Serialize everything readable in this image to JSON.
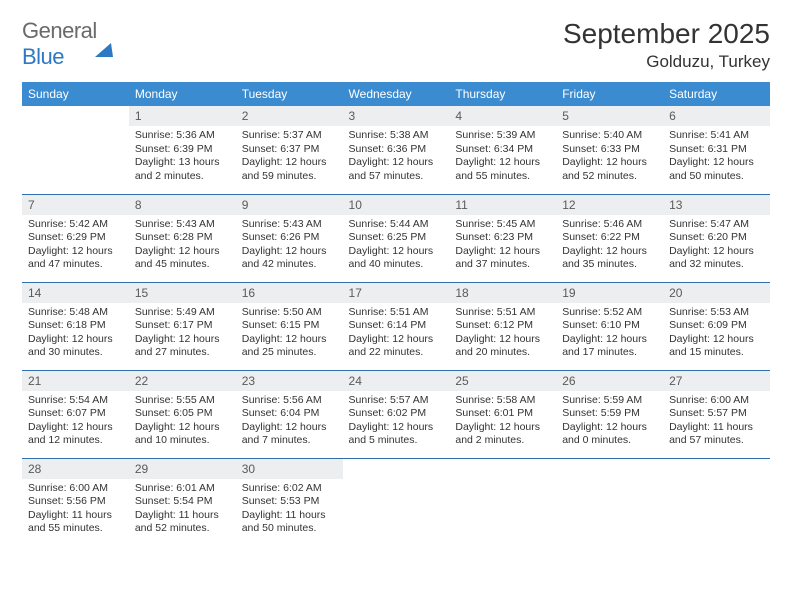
{
  "brand": {
    "word1": "General",
    "word2": "Blue"
  },
  "title": "September 2025",
  "location": "Golduzu, Turkey",
  "colors": {
    "header_bg": "#3b8bd0",
    "header_text": "#ffffff",
    "daynum_bg": "#eceeef",
    "row_border": "#2f6faa",
    "logo_gray": "#6a6a6a",
    "logo_blue": "#2f78c4",
    "text": "#333333"
  },
  "dow": [
    "Sunday",
    "Monday",
    "Tuesday",
    "Wednesday",
    "Thursday",
    "Friday",
    "Saturday"
  ],
  "weeks": [
    [
      {
        "n": "",
        "sr": "",
        "ss": "",
        "dl": ""
      },
      {
        "n": "1",
        "sr": "Sunrise: 5:36 AM",
        "ss": "Sunset: 6:39 PM",
        "dl": "Daylight: 13 hours and 2 minutes."
      },
      {
        "n": "2",
        "sr": "Sunrise: 5:37 AM",
        "ss": "Sunset: 6:37 PM",
        "dl": "Daylight: 12 hours and 59 minutes."
      },
      {
        "n": "3",
        "sr": "Sunrise: 5:38 AM",
        "ss": "Sunset: 6:36 PM",
        "dl": "Daylight: 12 hours and 57 minutes."
      },
      {
        "n": "4",
        "sr": "Sunrise: 5:39 AM",
        "ss": "Sunset: 6:34 PM",
        "dl": "Daylight: 12 hours and 55 minutes."
      },
      {
        "n": "5",
        "sr": "Sunrise: 5:40 AM",
        "ss": "Sunset: 6:33 PM",
        "dl": "Daylight: 12 hours and 52 minutes."
      },
      {
        "n": "6",
        "sr": "Sunrise: 5:41 AM",
        "ss": "Sunset: 6:31 PM",
        "dl": "Daylight: 12 hours and 50 minutes."
      }
    ],
    [
      {
        "n": "7",
        "sr": "Sunrise: 5:42 AM",
        "ss": "Sunset: 6:29 PM",
        "dl": "Daylight: 12 hours and 47 minutes."
      },
      {
        "n": "8",
        "sr": "Sunrise: 5:43 AM",
        "ss": "Sunset: 6:28 PM",
        "dl": "Daylight: 12 hours and 45 minutes."
      },
      {
        "n": "9",
        "sr": "Sunrise: 5:43 AM",
        "ss": "Sunset: 6:26 PM",
        "dl": "Daylight: 12 hours and 42 minutes."
      },
      {
        "n": "10",
        "sr": "Sunrise: 5:44 AM",
        "ss": "Sunset: 6:25 PM",
        "dl": "Daylight: 12 hours and 40 minutes."
      },
      {
        "n": "11",
        "sr": "Sunrise: 5:45 AM",
        "ss": "Sunset: 6:23 PM",
        "dl": "Daylight: 12 hours and 37 minutes."
      },
      {
        "n": "12",
        "sr": "Sunrise: 5:46 AM",
        "ss": "Sunset: 6:22 PM",
        "dl": "Daylight: 12 hours and 35 minutes."
      },
      {
        "n": "13",
        "sr": "Sunrise: 5:47 AM",
        "ss": "Sunset: 6:20 PM",
        "dl": "Daylight: 12 hours and 32 minutes."
      }
    ],
    [
      {
        "n": "14",
        "sr": "Sunrise: 5:48 AM",
        "ss": "Sunset: 6:18 PM",
        "dl": "Daylight: 12 hours and 30 minutes."
      },
      {
        "n": "15",
        "sr": "Sunrise: 5:49 AM",
        "ss": "Sunset: 6:17 PM",
        "dl": "Daylight: 12 hours and 27 minutes."
      },
      {
        "n": "16",
        "sr": "Sunrise: 5:50 AM",
        "ss": "Sunset: 6:15 PM",
        "dl": "Daylight: 12 hours and 25 minutes."
      },
      {
        "n": "17",
        "sr": "Sunrise: 5:51 AM",
        "ss": "Sunset: 6:14 PM",
        "dl": "Daylight: 12 hours and 22 minutes."
      },
      {
        "n": "18",
        "sr": "Sunrise: 5:51 AM",
        "ss": "Sunset: 6:12 PM",
        "dl": "Daylight: 12 hours and 20 minutes."
      },
      {
        "n": "19",
        "sr": "Sunrise: 5:52 AM",
        "ss": "Sunset: 6:10 PM",
        "dl": "Daylight: 12 hours and 17 minutes."
      },
      {
        "n": "20",
        "sr": "Sunrise: 5:53 AM",
        "ss": "Sunset: 6:09 PM",
        "dl": "Daylight: 12 hours and 15 minutes."
      }
    ],
    [
      {
        "n": "21",
        "sr": "Sunrise: 5:54 AM",
        "ss": "Sunset: 6:07 PM",
        "dl": "Daylight: 12 hours and 12 minutes."
      },
      {
        "n": "22",
        "sr": "Sunrise: 5:55 AM",
        "ss": "Sunset: 6:05 PM",
        "dl": "Daylight: 12 hours and 10 minutes."
      },
      {
        "n": "23",
        "sr": "Sunrise: 5:56 AM",
        "ss": "Sunset: 6:04 PM",
        "dl": "Daylight: 12 hours and 7 minutes."
      },
      {
        "n": "24",
        "sr": "Sunrise: 5:57 AM",
        "ss": "Sunset: 6:02 PM",
        "dl": "Daylight: 12 hours and 5 minutes."
      },
      {
        "n": "25",
        "sr": "Sunrise: 5:58 AM",
        "ss": "Sunset: 6:01 PM",
        "dl": "Daylight: 12 hours and 2 minutes."
      },
      {
        "n": "26",
        "sr": "Sunrise: 5:59 AM",
        "ss": "Sunset: 5:59 PM",
        "dl": "Daylight: 12 hours and 0 minutes."
      },
      {
        "n": "27",
        "sr": "Sunrise: 6:00 AM",
        "ss": "Sunset: 5:57 PM",
        "dl": "Daylight: 11 hours and 57 minutes."
      }
    ],
    [
      {
        "n": "28",
        "sr": "Sunrise: 6:00 AM",
        "ss": "Sunset: 5:56 PM",
        "dl": "Daylight: 11 hours and 55 minutes."
      },
      {
        "n": "29",
        "sr": "Sunrise: 6:01 AM",
        "ss": "Sunset: 5:54 PM",
        "dl": "Daylight: 11 hours and 52 minutes."
      },
      {
        "n": "30",
        "sr": "Sunrise: 6:02 AM",
        "ss": "Sunset: 5:53 PM",
        "dl": "Daylight: 11 hours and 50 minutes."
      },
      {
        "n": "",
        "sr": "",
        "ss": "",
        "dl": ""
      },
      {
        "n": "",
        "sr": "",
        "ss": "",
        "dl": ""
      },
      {
        "n": "",
        "sr": "",
        "ss": "",
        "dl": ""
      },
      {
        "n": "",
        "sr": "",
        "ss": "",
        "dl": ""
      }
    ]
  ]
}
